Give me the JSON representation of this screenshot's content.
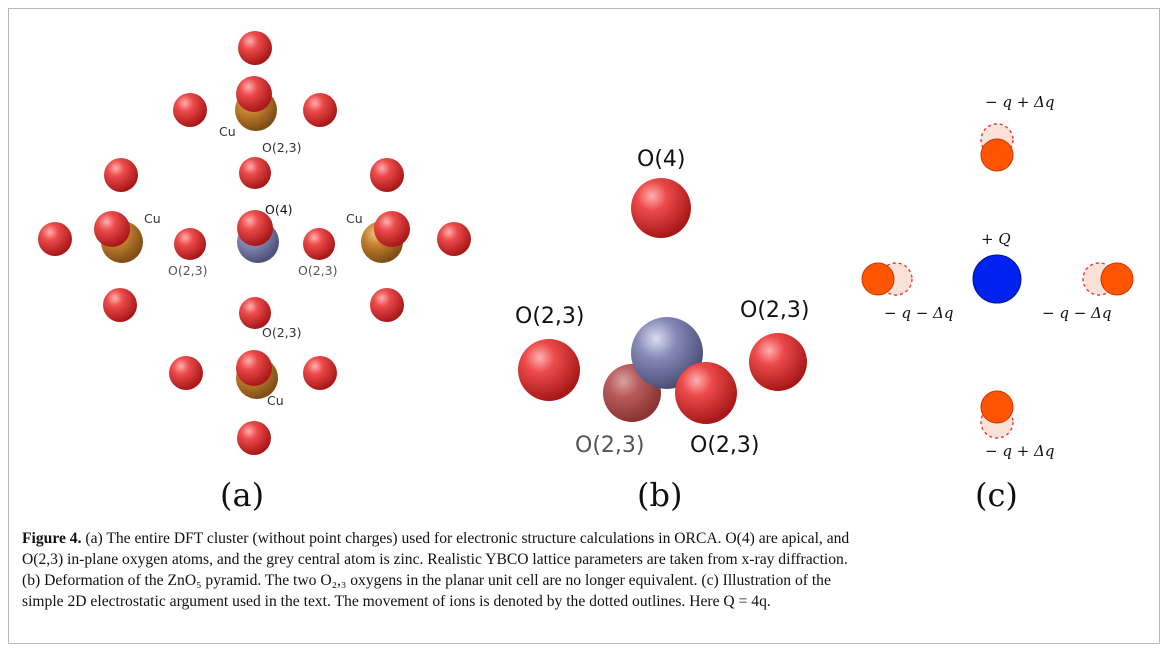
{
  "panel_a": {
    "cu_label": "Cu",
    "o4_label": "O(4)",
    "o23_label": "O(2,3)",
    "tag": "(a)"
  },
  "panel_b": {
    "o4_label": "O(4)",
    "o23_label": "O(2,3)",
    "tag": "(b)"
  },
  "panel_c": {
    "top_charge": "− q + Δq",
    "bottom_charge": "− q + Δq",
    "left_charge": "− q − Δq",
    "right_charge": "− q − Δq",
    "center_charge": "+ Q",
    "tag": "(c)"
  },
  "caption": {
    "figure_label": "Figure 4.",
    "lines": [
      "(a) The entire DFT cluster (without point charges) used for electronic structure calculations in ORCA. O(4) are apical, and",
      "O(2,3) in-plane oxygen atoms, and the grey central atom is zinc. Realistic YBCO lattice parameters are taken from x-ray diffraction.",
      "(b) Deformation of the ZnO₅ pyramid. The two O₂,₃ oxygens in the planar unit cell are no longer equivalent. (c) Illustration of the",
      "simple 2D electrostatic argument used in the text. The movement of ions is denoted by the dotted outlines. Here Q = 4q."
    ]
  },
  "colors": {
    "oxygen": "#e03535",
    "copper": "#c07a32",
    "zinc": "#7a7fa8",
    "anion": "#ff5500",
    "cation": "#0022ee"
  }
}
